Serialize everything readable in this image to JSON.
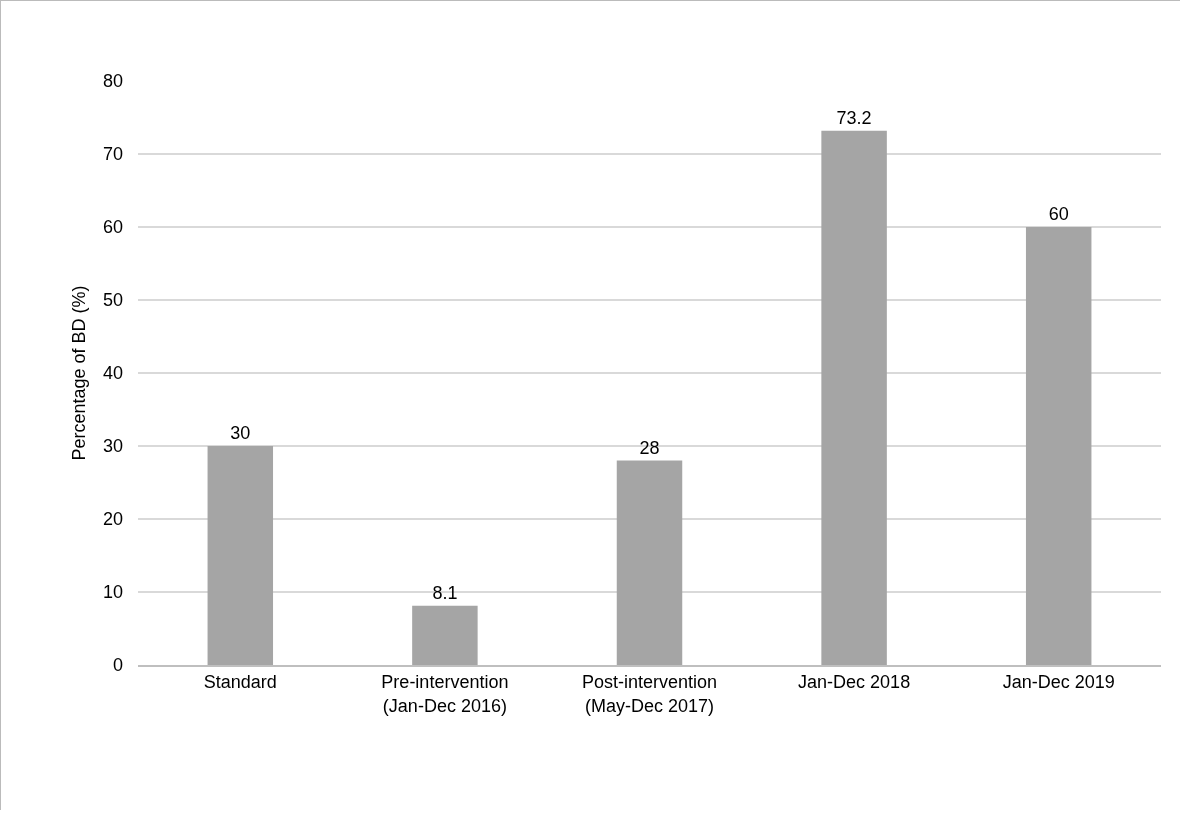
{
  "chart_data": {
    "type": "bar",
    "ylabel": "Percentage of BD (%)",
    "categories": [
      "Standard",
      "Pre-intervention\n(Jan-Dec 2016)",
      "Post-intervention\n(May-Dec 2017)",
      "Jan-Dec 2018",
      "Jan-Dec 2019"
    ],
    "values": [
      30,
      8.1,
      28,
      73.2,
      60
    ],
    "color": "#a5a5a5",
    "data_labels": true,
    "ylim": [
      0,
      80
    ],
    "yticks": [
      0,
      10,
      20,
      30,
      40,
      50,
      60,
      70,
      80
    ],
    "grid": "y"
  }
}
